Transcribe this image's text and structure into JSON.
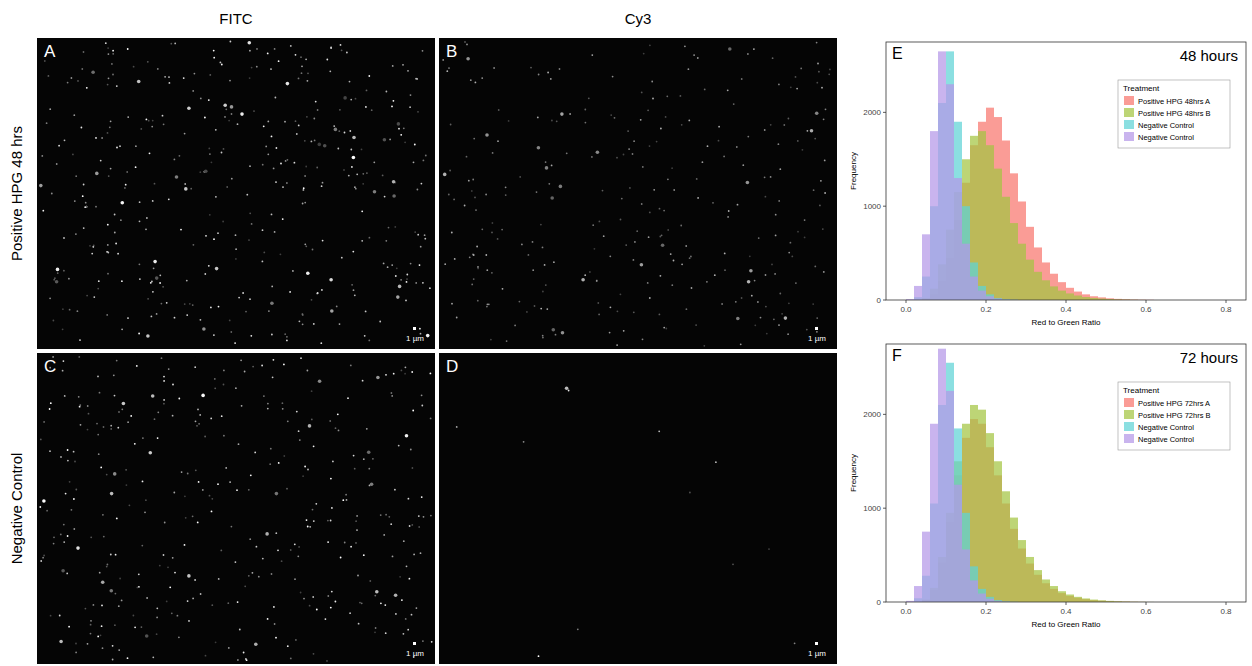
{
  "figure": {
    "columns": [
      "FITC",
      "Cy3"
    ],
    "rows": [
      "Positive HPG 48 hrs",
      "Negative Control"
    ],
    "panels": [
      {
        "label": "A",
        "scale_bar": "1 µm"
      },
      {
        "label": "B",
        "scale_bar": "1 µm"
      },
      {
        "label": "C",
        "scale_bar": "1 µm"
      },
      {
        "label": "D",
        "scale_bar": "1 µm"
      }
    ]
  },
  "chart_data": [
    {
      "type": "histogram",
      "panel": "E",
      "title": "48 hours",
      "x_label": "Red to Green Ratio",
      "y_label": "Frequency",
      "legend_title": "Treatment",
      "legend": "top-right",
      "bins": [
        0,
        0.02,
        0.04,
        0.06,
        0.08,
        0.1,
        0.12,
        0.14,
        0.16,
        0.18,
        0.2,
        0.22,
        0.24,
        0.26,
        0.28,
        0.3,
        0.32,
        0.34,
        0.36,
        0.38,
        0.4,
        0.42,
        0.44,
        0.46,
        0.48,
        0.5,
        0.52,
        0.54,
        0.56,
        0.58,
        0.6,
        0.62,
        0.64,
        0.66,
        0.68,
        0.7,
        0.72,
        0.74,
        0.76,
        0.78,
        0.8
      ],
      "xlim": [
        -0.05,
        0.85
      ],
      "xticks": [
        {
          "value": 0,
          "label": "0.0"
        },
        0.2,
        0.4,
        0.6,
        0.8
      ],
      "ylim": [
        0,
        2750
      ],
      "yticks": [
        0,
        1000,
        2000
      ],
      "series": [
        {
          "name": "Positive HPG 48hrs A",
          "color": "#f8766d",
          "values": [
            0,
            0,
            10,
            60,
            200,
            450,
            850,
            1250,
            1650,
            1900,
            2050,
            1950,
            1700,
            1350,
            1050,
            780,
            560,
            400,
            280,
            190,
            130,
            90,
            60,
            40,
            28,
            18,
            12,
            8,
            5,
            3,
            2,
            0,
            0,
            0,
            0,
            0,
            0,
            0,
            0,
            0
          ]
        },
        {
          "name": "Positive HPG 48hrs B",
          "color": "#a3c541",
          "values": [
            0,
            0,
            20,
            120,
            380,
            750,
            1150,
            1500,
            1750,
            1800,
            1650,
            1400,
            1100,
            820,
            600,
            430,
            300,
            210,
            145,
            100,
            70,
            48,
            32,
            22,
            15,
            10,
            6,
            4,
            2,
            1,
            0,
            0,
            0,
            0,
            0,
            0,
            0,
            0,
            0,
            0
          ]
        },
        {
          "name": "Negative Control",
          "color": "#5ed3d5",
          "values": [
            0,
            30,
            250,
            1000,
            2100,
            2650,
            1900,
            1000,
            400,
            150,
            60,
            20,
            8,
            3,
            0,
            0,
            0,
            0,
            0,
            0,
            0,
            0,
            0,
            0,
            0,
            0,
            0,
            0,
            0,
            0,
            0,
            0,
            0,
            0,
            0,
            0,
            0,
            0,
            0,
            0
          ]
        },
        {
          "name": "Negative Control",
          "color": "#b497e7",
          "values": [
            10,
            150,
            700,
            1800,
            2650,
            2300,
            1300,
            600,
            250,
            100,
            40,
            15,
            5,
            2,
            0,
            0,
            0,
            0,
            0,
            0,
            0,
            0,
            0,
            0,
            0,
            0,
            0,
            0,
            0,
            0,
            0,
            0,
            0,
            0,
            0,
            0,
            0,
            0,
            0,
            0
          ]
        }
      ]
    },
    {
      "type": "histogram",
      "panel": "F",
      "title": "72 hours",
      "x_label": "Red to Green Ratio",
      "y_label": "Frequency",
      "legend_title": "Treatment",
      "legend": "top-right",
      "bins": [
        0,
        0.02,
        0.04,
        0.06,
        0.08,
        0.1,
        0.12,
        0.14,
        0.16,
        0.18,
        0.2,
        0.22,
        0.24,
        0.26,
        0.28,
        0.3,
        0.32,
        0.34,
        0.36,
        0.38,
        0.4,
        0.42,
        0.44,
        0.46,
        0.48,
        0.5,
        0.52,
        0.54,
        0.56,
        0.58,
        0.6,
        0.62,
        0.64,
        0.66,
        0.68,
        0.7,
        0.72,
        0.74,
        0.76,
        0.78,
        0.8
      ],
      "xlim": [
        -0.05,
        0.85
      ],
      "xticks": [
        {
          "value": 0,
          "label": "0.0"
        },
        0.2,
        0.4,
        0.6,
        0.8
      ],
      "ylim": [
        0,
        2750
      ],
      "yticks": [
        0,
        1000,
        2000
      ],
      "series": [
        {
          "name": "Positive HPG 72hrs A",
          "color": "#f8766d",
          "values": [
            0,
            0,
            20,
            130,
            420,
            850,
            1350,
            1750,
            1950,
            1900,
            1650,
            1350,
            1050,
            780,
            570,
            410,
            290,
            200,
            140,
            95,
            65,
            45,
            30,
            20,
            13,
            9,
            6,
            4,
            2,
            1,
            0,
            0,
            0,
            0,
            0,
            0,
            0,
            0,
            0,
            0
          ]
        },
        {
          "name": "Positive HPG 72hrs B",
          "color": "#a3c541",
          "values": [
            0,
            0,
            25,
            150,
            480,
            950,
            1500,
            1900,
            2100,
            2050,
            1800,
            1500,
            1180,
            900,
            660,
            480,
            340,
            240,
            170,
            115,
            80,
            55,
            38,
            26,
            18,
            12,
            8,
            5,
            3,
            2,
            1,
            0,
            0,
            0,
            0,
            0,
            0,
            0,
            0,
            0
          ]
        },
        {
          "name": "Negative Control",
          "color": "#5ed3d5",
          "values": [
            0,
            40,
            280,
            1050,
            2100,
            2550,
            1850,
            950,
            380,
            140,
            55,
            20,
            7,
            2,
            0,
            0,
            0,
            0,
            0,
            0,
            0,
            0,
            0,
            0,
            0,
            0,
            0,
            0,
            0,
            0,
            0,
            0,
            0,
            0,
            0,
            0,
            0,
            0,
            0,
            0
          ]
        },
        {
          "name": "Negative Control",
          "color": "#b497e7",
          "values": [
            12,
            170,
            750,
            1900,
            2700,
            2250,
            1250,
            560,
            230,
            90,
            35,
            12,
            4,
            1,
            0,
            0,
            0,
            0,
            0,
            0,
            0,
            0,
            0,
            0,
            0,
            0,
            0,
            0,
            0,
            0,
            0,
            0,
            0,
            0,
            0,
            0,
            0,
            0,
            0,
            0
          ]
        }
      ]
    }
  ]
}
